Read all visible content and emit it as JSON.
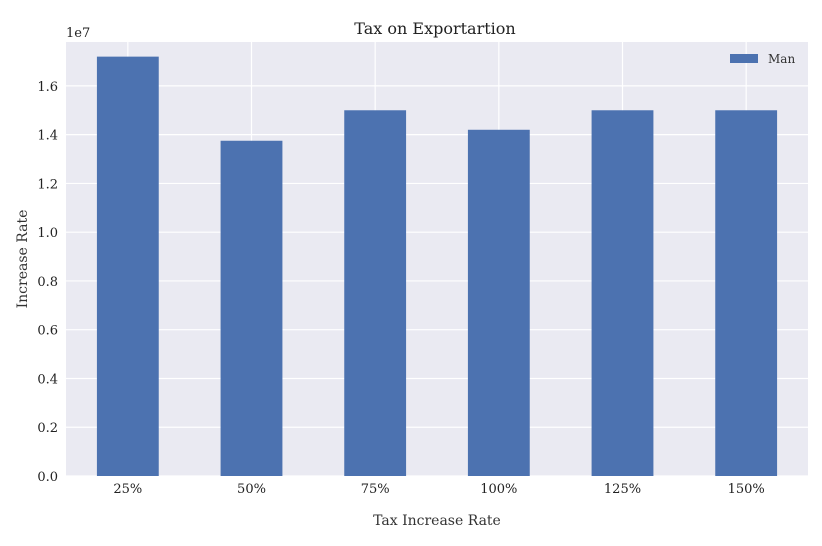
{
  "chart_data": {
    "type": "bar",
    "title": "Tax on Exportartion",
    "xlabel": "Tax Increase Rate",
    "ylabel": "Increase Rate",
    "y_offset_label": "1e7",
    "y_scale": 10000000,
    "categories": [
      "25%",
      "50%",
      "75%",
      "100%",
      "125%",
      "150%"
    ],
    "series": [
      {
        "name": "Man",
        "color": "#4c72b0",
        "values": [
          17200000,
          13750000,
          15000000,
          14200000,
          15000000,
          15000000
        ]
      }
    ],
    "ylim": [
      0,
      17800000
    ],
    "yticks": [
      0.0,
      0.2,
      0.4,
      0.6,
      0.8,
      1.0,
      1.2,
      1.4,
      1.6
    ],
    "ytick_labels": [
      "0.0",
      "0.2",
      "0.4",
      "0.6",
      "0.8",
      "1.0",
      "1.2",
      "1.4",
      "1.6"
    ],
    "grid": true,
    "background_color": "#eaeaf2",
    "legend_position": "top-right"
  }
}
